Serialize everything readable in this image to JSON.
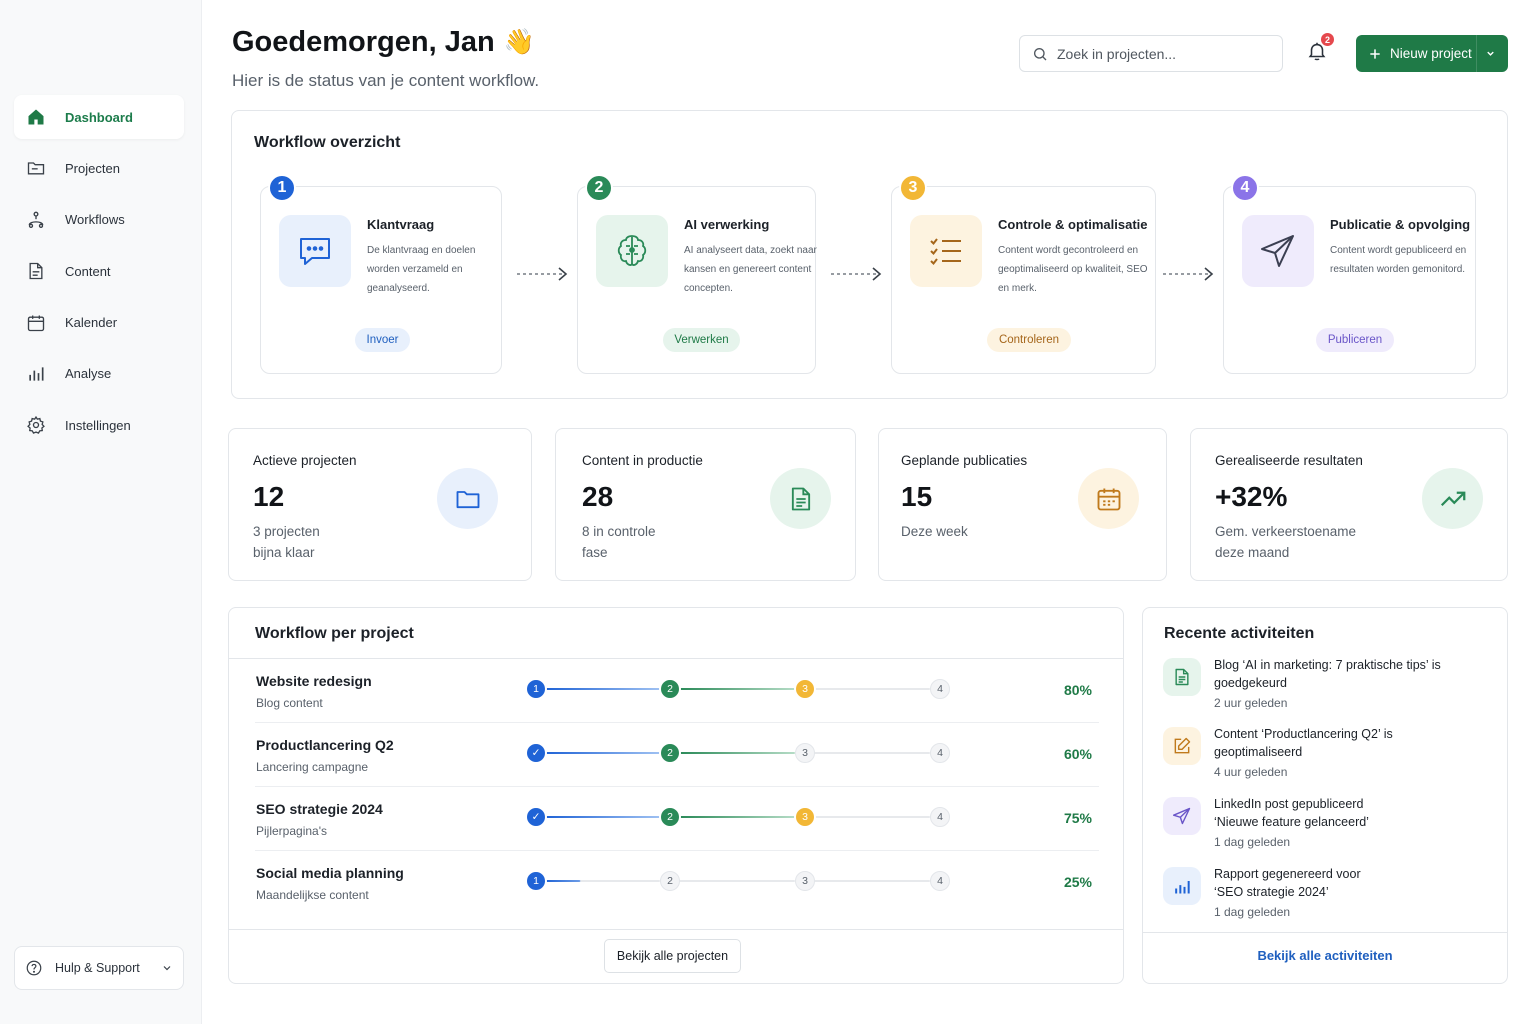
{
  "sidebar": {
    "items": [
      {
        "label": "Dashboard",
        "icon": "home-icon",
        "active": true
      },
      {
        "label": "Projecten",
        "icon": "folder-icon"
      },
      {
        "label": "Workflows",
        "icon": "workflow-icon"
      },
      {
        "label": "Content",
        "icon": "document-icon"
      },
      {
        "label": "Kalender",
        "icon": "calendar-icon"
      },
      {
        "label": "Analyse",
        "icon": "bar-chart-icon"
      },
      {
        "label": "Instellingen",
        "icon": "gear-icon"
      }
    ],
    "help_label": "Hulp & Support"
  },
  "header": {
    "greeting": "Goedemorgen, Jan",
    "greeting_emoji": "👋",
    "subtitle": "Hier is de status van je content workflow.",
    "search_placeholder": "Zoek in projecten...",
    "notification_count": "2",
    "new_project_label": "Nieuw project"
  },
  "workflow_overview": {
    "title": "Workflow overzicht",
    "steps": [
      {
        "number": "1",
        "title": "Klantvraag",
        "description": "De klantvraag en doelen worden verzameld en geanalyseerd.",
        "tag": "Invoer",
        "color": "#1f63d6",
        "icon": "chat-icon"
      },
      {
        "number": "2",
        "title": "AI verwerking",
        "description": "AI analyseert data, zoekt naar kansen en genereert content concepten.",
        "tag": "Verwerken",
        "color": "#2a8a58",
        "icon": "brain-icon"
      },
      {
        "number": "3",
        "title": "Controle & optimalisatie",
        "description": "Content wordt gecontroleerd en geoptimaliseerd op kwaliteit, SEO en merk.",
        "tag": "Controleren",
        "color": "#f2b736",
        "icon": "checklist-icon"
      },
      {
        "number": "4",
        "title": "Publicatie & opvolging",
        "description": "Content wordt gepubliceerd en resultaten worden gemonitord.",
        "tag": "Publiceren",
        "color": "#8b74e8",
        "icon": "send-icon"
      }
    ]
  },
  "kpis": [
    {
      "title": "Actieve projecten",
      "value": "12",
      "sub": "3 projecten\nbijna klaar",
      "icon": "folder-icon"
    },
    {
      "title": "Content in productie",
      "value": "28",
      "sub": "8 in controle\nfase",
      "icon": "document-icon"
    },
    {
      "title": "Geplande publicaties",
      "value": "15",
      "sub": "Deze week",
      "icon": "calendar-icon"
    },
    {
      "title": "Gerealiseerde resultaten",
      "value": "+32%",
      "sub": "Gem. verkeerstoename\ndeze maand",
      "icon": "trending-up-icon"
    }
  ],
  "workflow_per_project": {
    "title": "Workflow per project",
    "projects": [
      {
        "name": "Website redesign",
        "sub": "Blog content",
        "percent": "80%",
        "progress": 0.8,
        "steps": [
          "1",
          "2",
          "3",
          "4"
        ]
      },
      {
        "name": "Productlancering Q2",
        "sub": "Lancering campagne",
        "percent": "60%",
        "progress": 0.6,
        "steps": [
          "✓",
          "2",
          "3",
          "4"
        ]
      },
      {
        "name": "SEO strategie 2024",
        "sub": "Pijlerpagina's",
        "percent": "75%",
        "progress": 0.75,
        "steps": [
          "✓",
          "2",
          "3",
          "4"
        ]
      },
      {
        "name": "Social media planning",
        "sub": "Maandelijkse content",
        "percent": "25%",
        "progress": 0.25,
        "steps": [
          "1",
          "2",
          "3",
          "4"
        ]
      }
    ],
    "view_all_label": "Bekijk alle projecten"
  },
  "recent_activities": {
    "title": "Recente activiteiten",
    "items": [
      {
        "text": "Blog ‘AI in marketing: 7 praktische tips’ is goedgekeurd",
        "time": "2 uur geleden",
        "icon": "document-icon"
      },
      {
        "text": "Content ‘Productlancering Q2’ is geoptimaliseerd",
        "time": "4 uur geleden",
        "icon": "edit-icon"
      },
      {
        "text": "LinkedIn post gepubliceerd ‘Nieuwe feature gelanceerd’",
        "time": "1 dag geleden",
        "icon": "send-icon"
      },
      {
        "text": "Rapport gegenereerd voor ‘SEO strategie 2024’",
        "time": "1 dag geleden",
        "icon": "bar-chart-icon"
      }
    ],
    "view_all_label": "Bekijk alle activiteiten"
  },
  "colors": {
    "brand_green": "#1f7a47",
    "blue": "#1f63d6",
    "green": "#2a8a58",
    "yellow": "#f2b736",
    "purple": "#8b74e8"
  }
}
